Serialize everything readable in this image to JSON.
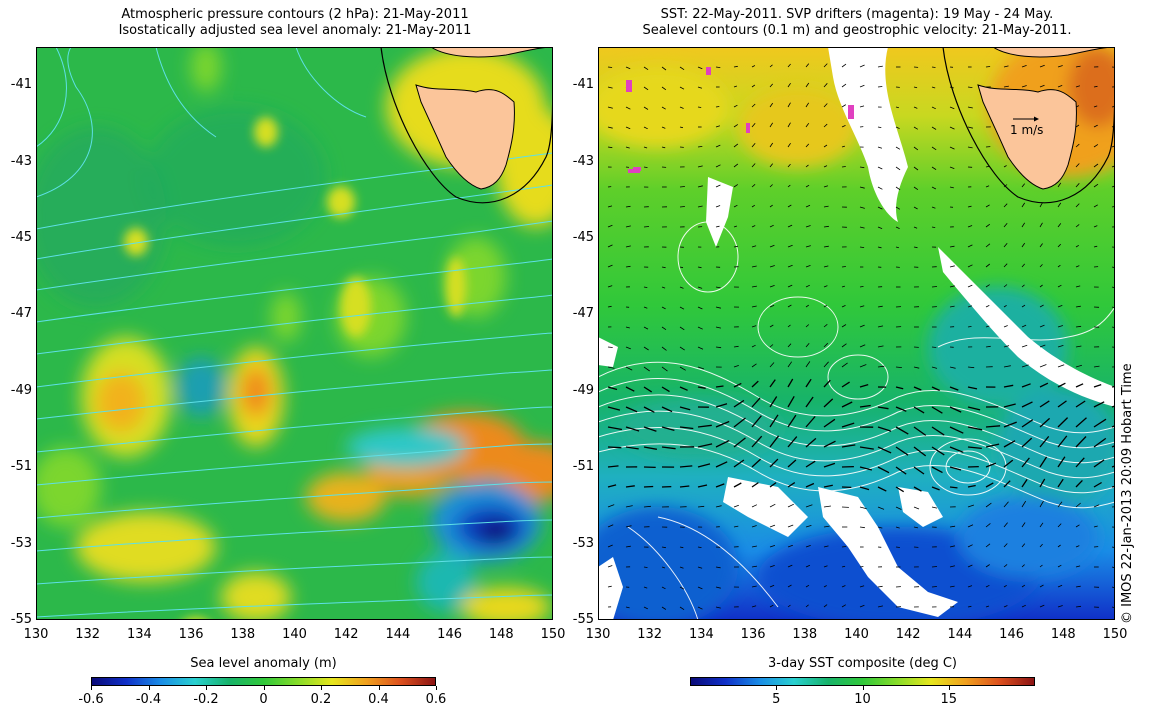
{
  "left_panel": {
    "title_line1": "Atmospheric pressure contours (2 hPa): 21-May-2011",
    "title_line2": "Isostatically adjusted sea level anomaly: 21-May-2011",
    "colorbar_label": "Sea level anomaly (m)",
    "colorbar_ticks": [
      "-0.6",
      "-0.4",
      "-0.2",
      "0",
      "0.2",
      "0.4",
      "0.6"
    ],
    "colorbar_range": [
      -0.6,
      0.6
    ]
  },
  "right_panel": {
    "title_line1": "SST: 22-May-2011. SVP drifters (magenta): 19 May - 24 May.",
    "title_line2": "Sealevel contours (0.1 m) and geostrophic velocity: 21-May-2011.",
    "colorbar_label": "3-day SST composite (deg C)",
    "colorbar_ticks": [
      "5",
      "10",
      "15"
    ],
    "colorbar_range": [
      0,
      20
    ],
    "velocity_scale_label": "1 m/s"
  },
  "axes": {
    "lon_ticks": [
      "130",
      "132",
      "134",
      "136",
      "138",
      "140",
      "142",
      "144",
      "146",
      "148",
      "150"
    ],
    "lat_ticks": [
      "-41",
      "-43",
      "-45",
      "-47",
      "-49",
      "-51",
      "-53",
      "-55"
    ],
    "lon_range": [
      130,
      150
    ],
    "lat_range": [
      -55,
      -40
    ]
  },
  "credit": "© IMOS 22-Jan-2013 20:09 Hobart Time",
  "colors": {
    "land": "#fbc59a",
    "contour_left": "#5ee0e6",
    "contour_right": "#ffffff",
    "coast": "#000000",
    "drifter": "#e040c0",
    "cloud_mask": "#ffffff"
  }
}
